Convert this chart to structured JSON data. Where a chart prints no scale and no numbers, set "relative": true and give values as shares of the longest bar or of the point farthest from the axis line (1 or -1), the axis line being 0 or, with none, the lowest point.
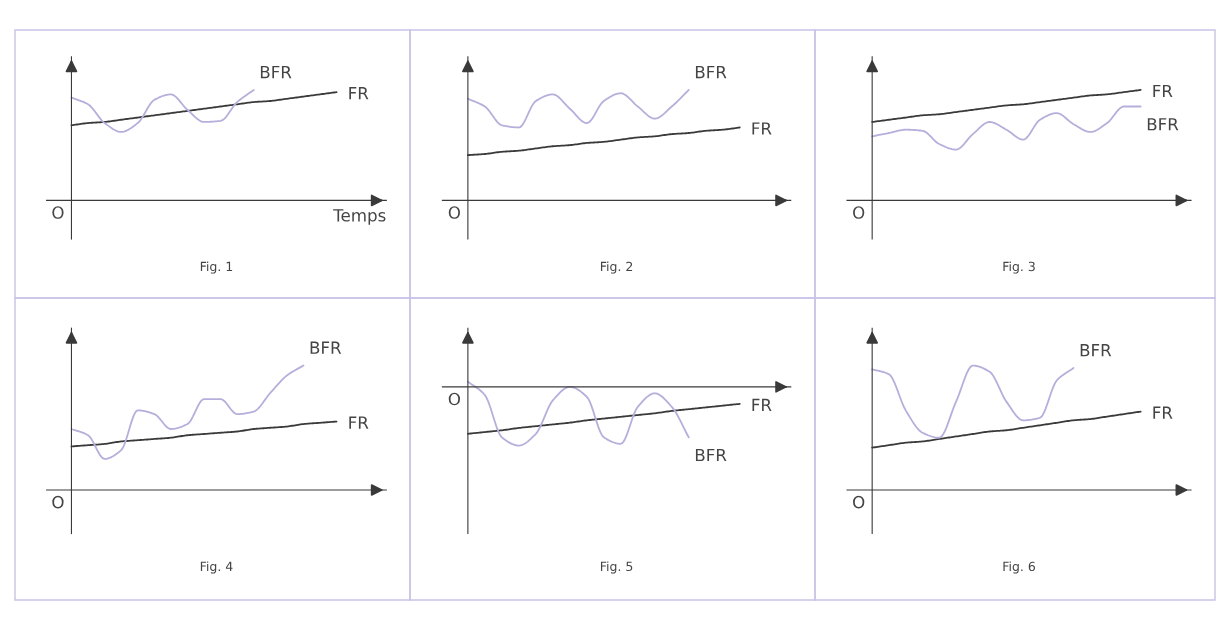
{
  "chart_data": [
    {
      "type": "line",
      "title": "Fig. 1",
      "xlabel": "Temps",
      "relative": true,
      "tick_labels": false,
      "annotations": [
        "O"
      ],
      "categories": [
        null,
        null,
        null,
        null,
        null,
        null,
        null,
        null,
        null,
        null,
        null,
        null,
        null,
        null,
        null,
        null,
        null
      ],
      "series": [
        {
          "name": "FR",
          "color": "#3a3a3a",
          "values": [
            0.68,
            0.7,
            0.71,
            0.73,
            0.75,
            0.77,
            0.79,
            0.81,
            0.83,
            0.85,
            0.87,
            0.89,
            0.9,
            0.92,
            0.94,
            0.96,
            0.98
          ]
        },
        {
          "name": "BFR",
          "color": "#b6aedb",
          "values": [
            0.93,
            0.87,
            0.7,
            0.62,
            0.7,
            0.91,
            0.96,
            0.82,
            0.71,
            0.72,
            0.89,
            1.0,
            null,
            null,
            null,
            null,
            null
          ]
        }
      ]
    },
    {
      "type": "line",
      "title": "Fig. 2",
      "relative": true,
      "tick_labels": false,
      "annotations": [
        "O"
      ],
      "categories": [
        null,
        null,
        null,
        null,
        null,
        null,
        null,
        null,
        null,
        null,
        null,
        null,
        null,
        null,
        null,
        null,
        null
      ],
      "series": [
        {
          "name": "FR",
          "color": "#3a3a3a",
          "values": [
            0.41,
            0.42,
            0.44,
            0.45,
            0.47,
            0.49,
            0.5,
            0.52,
            0.53,
            0.55,
            0.57,
            0.58,
            0.6,
            0.61,
            0.63,
            0.64,
            0.66
          ]
        },
        {
          "name": "BFR",
          "color": "#b6aedb",
          "values": [
            0.92,
            0.85,
            0.68,
            0.66,
            0.9,
            0.96,
            0.83,
            0.7,
            0.9,
            0.97,
            0.85,
            0.74,
            0.85,
            1.0,
            null,
            null,
            null
          ]
        }
      ]
    },
    {
      "type": "line",
      "title": "Fig. 3",
      "relative": true,
      "tick_labels": false,
      "annotations": [
        "O"
      ],
      "categories": [
        null,
        null,
        null,
        null,
        null,
        null,
        null,
        null,
        null,
        null,
        null,
        null,
        null,
        null,
        null,
        null,
        null
      ],
      "series": [
        {
          "name": "FR",
          "color": "#3a3a3a",
          "values": [
            0.71,
            0.73,
            0.75,
            0.77,
            0.78,
            0.8,
            0.82,
            0.84,
            0.86,
            0.87,
            0.89,
            0.91,
            0.93,
            0.95,
            0.96,
            0.98,
            1.0
          ]
        },
        {
          "name": "BFR",
          "color": "#b6aedb",
          "values": [
            0.58,
            0.61,
            0.64,
            0.63,
            0.51,
            0.46,
            0.6,
            0.71,
            0.64,
            0.55,
            0.73,
            0.79,
            0.69,
            0.62,
            0.7,
            0.85,
            0.85
          ]
        }
      ]
    },
    {
      "type": "line",
      "title": "Fig. 4",
      "relative": true,
      "tick_labels": false,
      "annotations": [
        "O"
      ],
      "categories": [
        null,
        null,
        null,
        null,
        null,
        null,
        null,
        null,
        null,
        null,
        null,
        null,
        null,
        null,
        null,
        null,
        null
      ],
      "series": [
        {
          "name": "FR",
          "color": "#3a3a3a",
          "values": [
            0.35,
            0.36,
            0.37,
            0.39,
            0.4,
            0.41,
            0.42,
            0.44,
            0.45,
            0.46,
            0.47,
            0.49,
            0.5,
            0.51,
            0.53,
            0.54,
            0.55
          ]
        },
        {
          "name": "BFR",
          "color": "#b6aedb",
          "values": [
            0.49,
            0.44,
            0.25,
            0.32,
            0.64,
            0.61,
            0.49,
            0.53,
            0.73,
            0.73,
            0.61,
            0.63,
            0.78,
            0.92,
            1.0,
            null,
            null
          ]
        }
      ]
    },
    {
      "type": "line",
      "title": "Fig. 5",
      "relative": true,
      "tick_labels": false,
      "annotations": [
        "O"
      ],
      "categories": [
        null,
        null,
        null,
        null,
        null,
        null,
        null,
        null,
        null,
        null,
        null,
        null,
        null,
        null,
        null,
        null,
        null
      ],
      "series": [
        {
          "name": "FR",
          "color": "#3a3a3a",
          "values": [
            -0.8,
            -0.77,
            -0.74,
            -0.7,
            -0.67,
            -0.64,
            -0.61,
            -0.57,
            -0.54,
            -0.51,
            -0.48,
            -0.45,
            -0.41,
            -0.38,
            -0.35,
            -0.32,
            -0.29
          ]
        },
        {
          "name": "BFR",
          "color": "#b6aedb",
          "values": [
            0.09,
            -0.14,
            -0.86,
            -1.0,
            -0.8,
            -0.23,
            0,
            -0.17,
            -0.86,
            -0.97,
            -0.34,
            -0.11,
            -0.34,
            -0.86,
            null,
            null,
            null
          ]
        }
      ]
    },
    {
      "type": "line",
      "title": "Fig. 6",
      "relative": true,
      "tick_labels": false,
      "annotations": [
        "O"
      ],
      "categories": [
        null,
        null,
        null,
        null,
        null,
        null,
        null,
        null,
        null,
        null,
        null,
        null,
        null,
        null,
        null,
        null,
        null
      ],
      "series": [
        {
          "name": "FR",
          "color": "#3a3a3a",
          "values": [
            0.34,
            0.36,
            0.38,
            0.39,
            0.41,
            0.43,
            0.45,
            0.47,
            0.48,
            0.5,
            0.52,
            0.54,
            0.56,
            0.57,
            0.59,
            0.61,
            0.63
          ]
        },
        {
          "name": "BFR",
          "color": "#b6aedb",
          "values": [
            0.97,
            0.93,
            0.64,
            0.46,
            0.42,
            0.71,
            1.0,
            0.95,
            0.71,
            0.56,
            0.58,
            0.88,
            0.98,
            null,
            null,
            null,
            null
          ]
        }
      ]
    }
  ]
}
